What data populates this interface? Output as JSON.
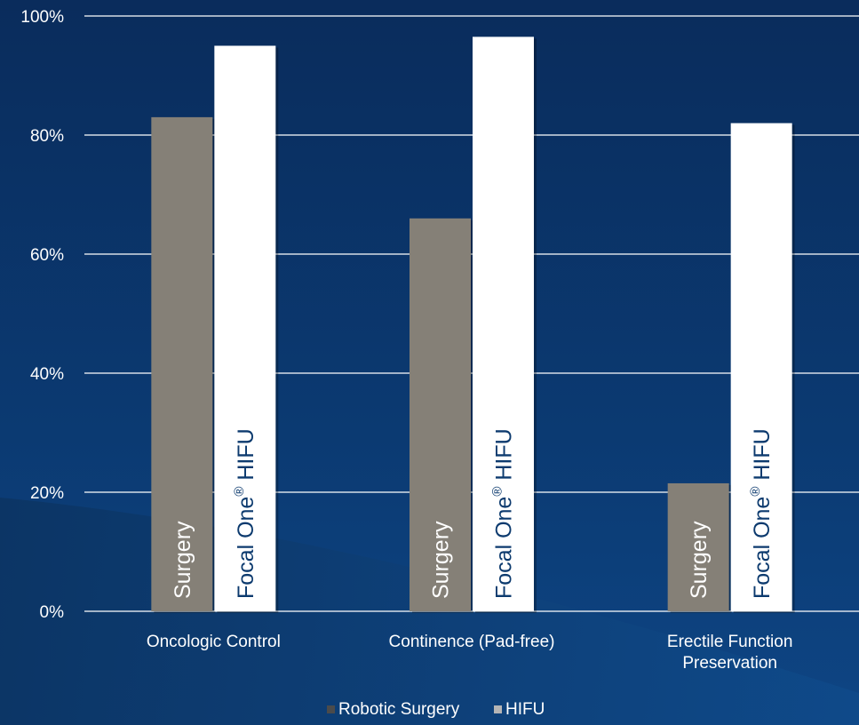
{
  "colors": {
    "background_top": "#0b2e5e",
    "background_bottom": "#0d3f7a",
    "gridline": "#ffffff",
    "text": "#ffffff",
    "surgery_bar": "#858077",
    "hifu_bar": "#ffffff",
    "surgery_label": "#ffffff",
    "hifu_label": "#0c3a6e"
  },
  "chart_data": {
    "type": "bar",
    "categories": [
      "Oncologic Control",
      "Continence (Pad-free)",
      "Erectile Function Preservation"
    ],
    "category_lines": [
      [
        "Oncologic Control"
      ],
      [
        "Continence (Pad-free)"
      ],
      [
        "Erectile Function",
        "Preservation"
      ]
    ],
    "series": [
      {
        "name": "Robotic Surgery",
        "values": [
          83,
          66,
          21.5
        ],
        "bar_label": "Surgery"
      },
      {
        "name": "HIFU",
        "values": [
          95,
          96.5,
          82
        ],
        "bar_label": "Focal One",
        "bar_label_sup": "®",
        "bar_label_suffix": " HIFU"
      }
    ],
    "ylim": [
      0,
      100
    ],
    "yticks": [
      0,
      20,
      40,
      60,
      80,
      100
    ],
    "ytick_labels": [
      "0%",
      "20%",
      "40%",
      "60%",
      "80%",
      "100%"
    ],
    "grid": true,
    "legend_position": "bottom",
    "title": "",
    "xlabel": "",
    "ylabel": ""
  }
}
